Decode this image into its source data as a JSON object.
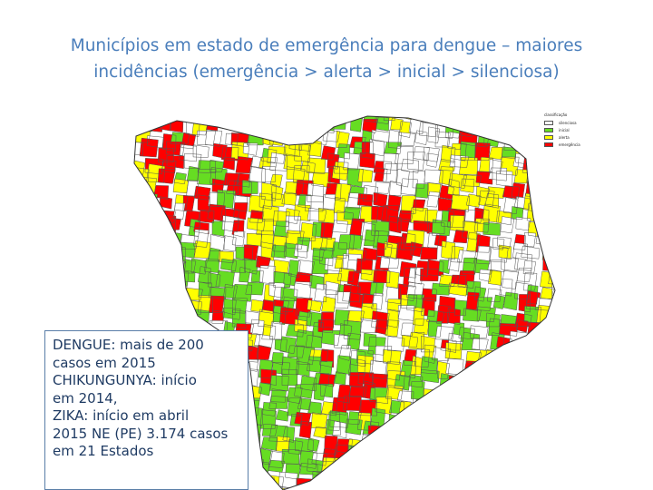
{
  "title_lines": [
    "Municípios em estado de emergência para dengue – maiores",
    "incidências (emergência > alerta > inicial > silenciosa)"
  ],
  "legend": {
    "title": "classificação",
    "items": [
      {
        "label": "silenciosa",
        "color": "#ffffff"
      },
      {
        "label": "inicial",
        "color": "#66dd22"
      },
      {
        "label": "alerta",
        "color": "#ffff00"
      },
      {
        "label": "emergência",
        "color": "#ff0000"
      }
    ]
  },
  "info_lines": [
    "DENGUE: mais de 200",
    "casos em 2015",
    "CHIKUNGUNYA: início",
    "em 2014,",
    "ZIKA: início em abril",
    "2015 NE (PE) 3.174 casos",
    "em 21 Estados"
  ],
  "colors": {
    "title": "#4a7ebb",
    "info_text": "#1f3b63",
    "info_border": "#5a7ea8",
    "border_lines": "#555555"
  }
}
